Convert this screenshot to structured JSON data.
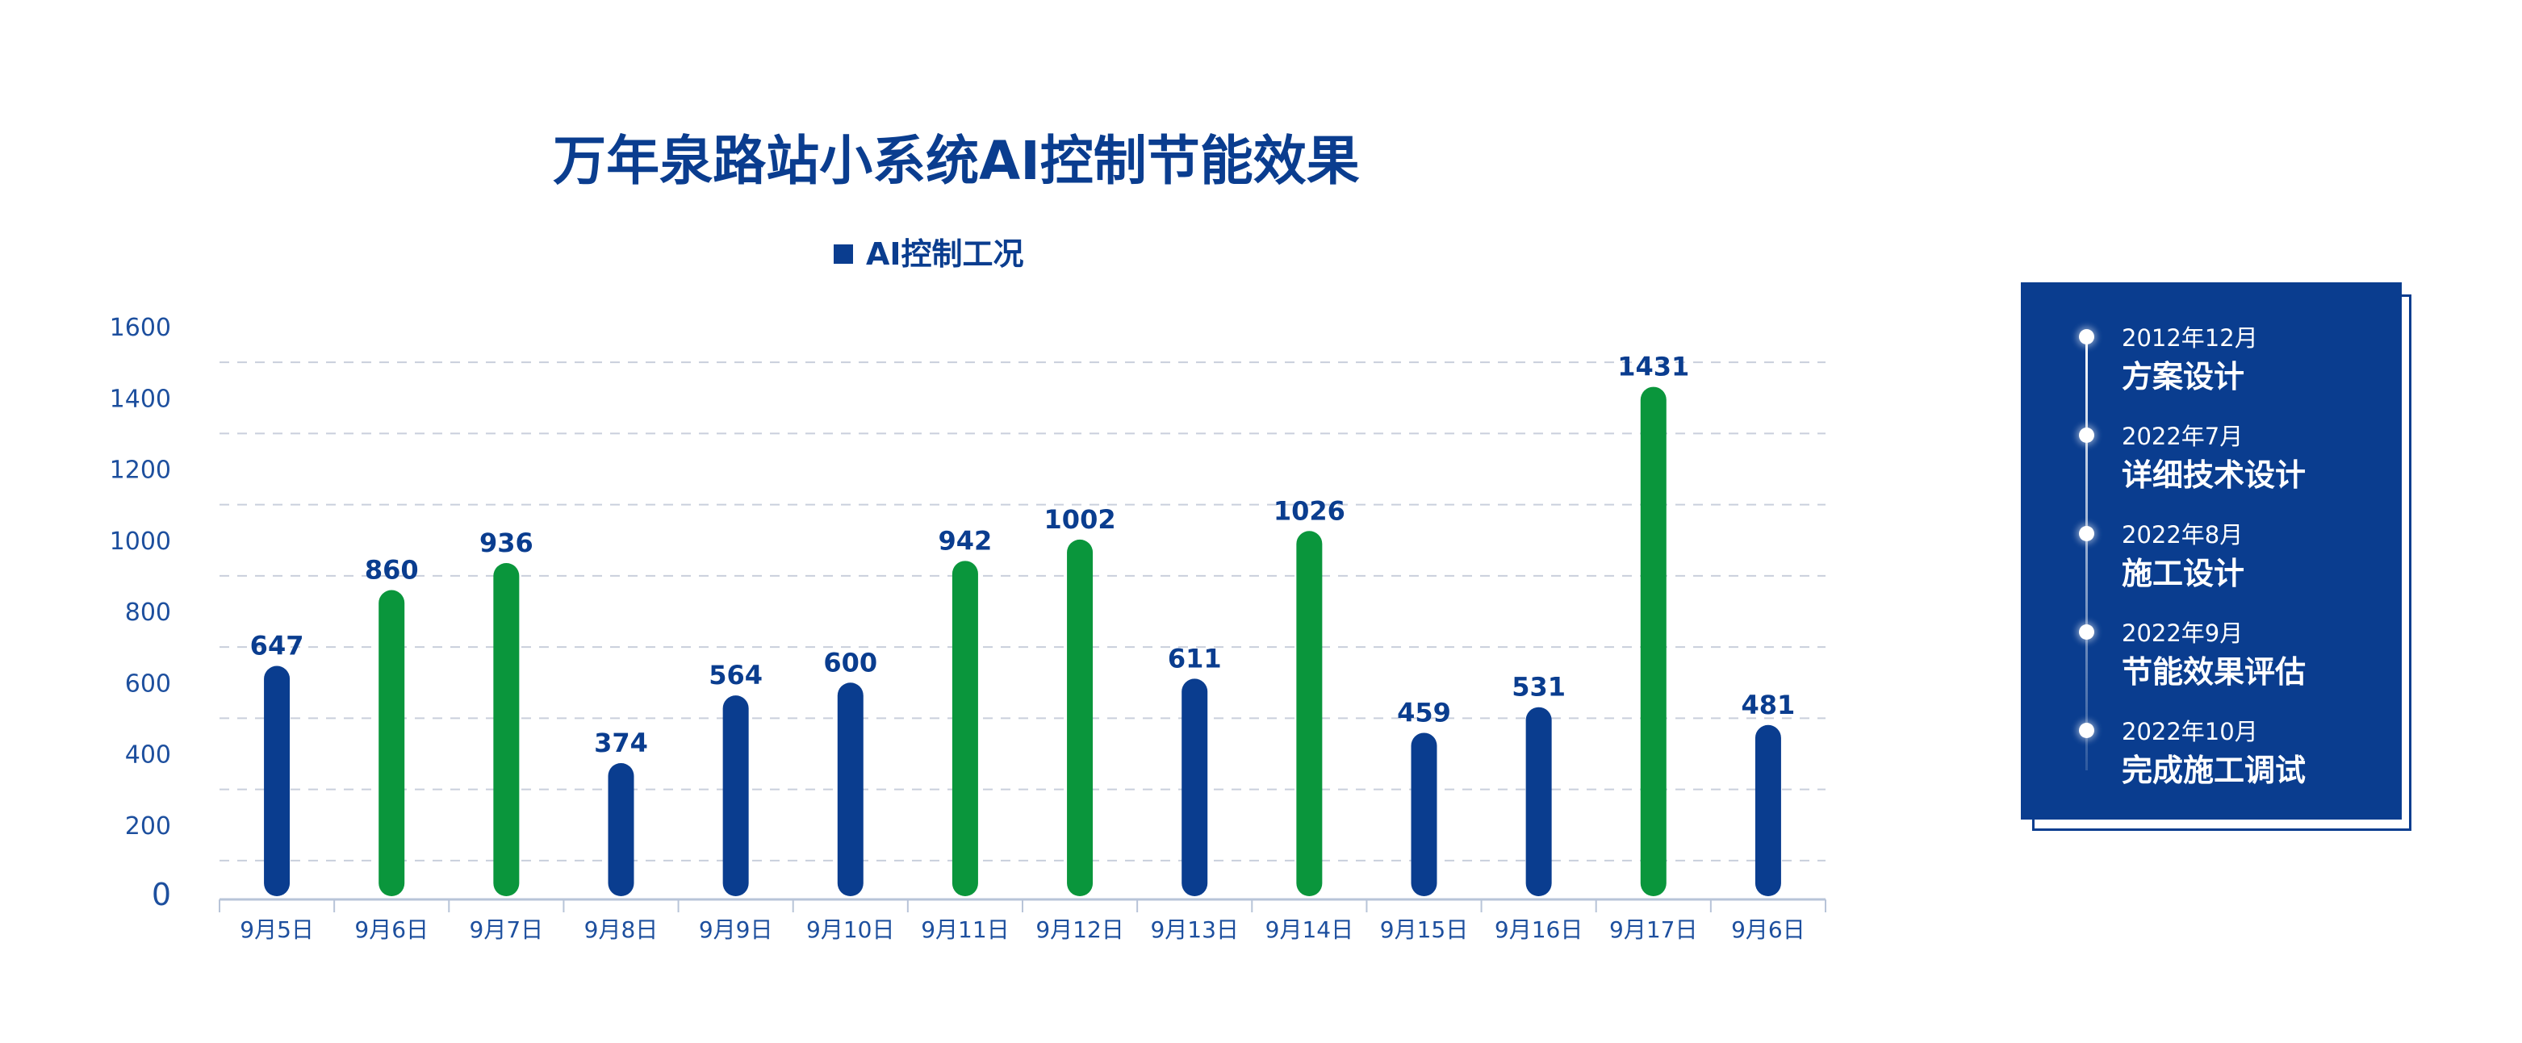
{
  "chart_data": {
    "type": "bar",
    "title": "万年泉路站小系统AI控制节能效果",
    "legend": "AI控制工况",
    "categories": [
      "9月5日",
      "9月6日",
      "9月7日",
      "9月8日",
      "9月9日",
      "9月10日",
      "9月11日",
      "9月12日",
      "9月13日",
      "9月14日",
      "9月15日",
      "9月16日",
      "9月17日",
      "9月6日"
    ],
    "values": [
      647,
      860,
      936,
      374,
      564,
      600,
      942,
      1002,
      611,
      1026,
      459,
      531,
      1431,
      481
    ],
    "highlight": [
      false,
      true,
      true,
      false,
      false,
      false,
      true,
      true,
      false,
      true,
      false,
      false,
      true,
      false
    ],
    "y_ticks": [
      "0",
      "200",
      "400",
      "600",
      "800",
      "1000",
      "1200",
      "1400",
      "1600"
    ],
    "ylim": [
      0,
      1600
    ],
    "xlabel": "",
    "ylabel": "",
    "grid": true,
    "colors": {
      "primary": "#0a3d8f",
      "highlight": "#0a963c",
      "grid": "#c9cfdc",
      "axis": "#b8c4d8"
    }
  },
  "timeline": {
    "items": [
      {
        "date": "2012年12月",
        "phase": "方案设计"
      },
      {
        "date": "2022年7月",
        "phase": "详细技术设计"
      },
      {
        "date": "2022年8月",
        "phase": "施工设计"
      },
      {
        "date": "2022年9月",
        "phase": "节能效果评估"
      },
      {
        "date": "2022年10月",
        "phase": "完成施工调试"
      }
    ]
  }
}
